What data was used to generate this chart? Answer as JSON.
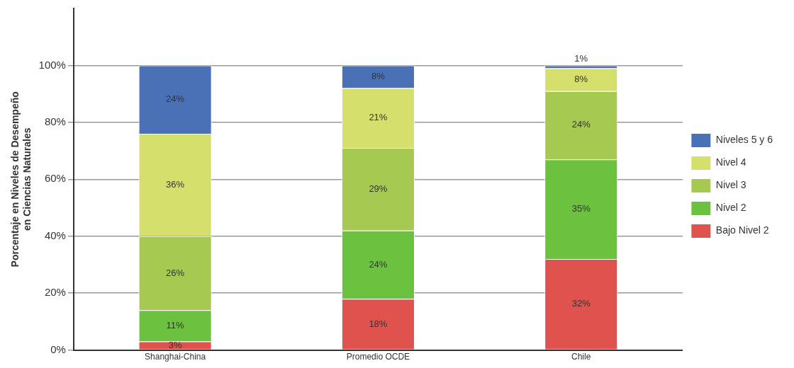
{
  "chart_data": {
    "type": "bar",
    "stacked": true,
    "ylabel": "Porcentaje en Niveles de Desempeño\nen Ciencias Naturales",
    "categories": [
      "Shanghai-China",
      "Promedio OCDE",
      "Chile"
    ],
    "series": [
      {
        "name": "Bajo Nivel 2",
        "color": "#e0524e",
        "values": [
          3,
          18,
          32
        ],
        "value_labels": [
          "3%",
          "18%",
          "32%"
        ]
      },
      {
        "name": "Nivel 2",
        "color": "#6cc13f",
        "values": [
          11,
          24,
          35
        ],
        "value_labels": [
          "11%",
          "24%",
          "35%"
        ]
      },
      {
        "name": "Nivel 3",
        "color": "#a5c951",
        "values": [
          26,
          29,
          24
        ],
        "value_labels": [
          "26%",
          "29%",
          "24%"
        ]
      },
      {
        "name": "Nivel 4",
        "color": "#d5df6c",
        "values": [
          36,
          21,
          8
        ],
        "value_labels": [
          "36%",
          "21%",
          "8%"
        ]
      },
      {
        "name": "Niveles 5 y 6",
        "color": "#4a70b6",
        "values": [
          24,
          8,
          1
        ],
        "value_labels": [
          "24%",
          "8%",
          "1%"
        ]
      }
    ],
    "ylim": [
      0,
      120
    ],
    "yticks": [
      {
        "value": 0,
        "label": "0%"
      },
      {
        "value": 20,
        "label": "20%"
      },
      {
        "value": 40,
        "label": "40%"
      },
      {
        "value": 60,
        "label": "60%"
      },
      {
        "value": 80,
        "label": "80%"
      },
      {
        "value": 100,
        "label": "100%"
      }
    ],
    "grid": "y",
    "legend": "right"
  }
}
